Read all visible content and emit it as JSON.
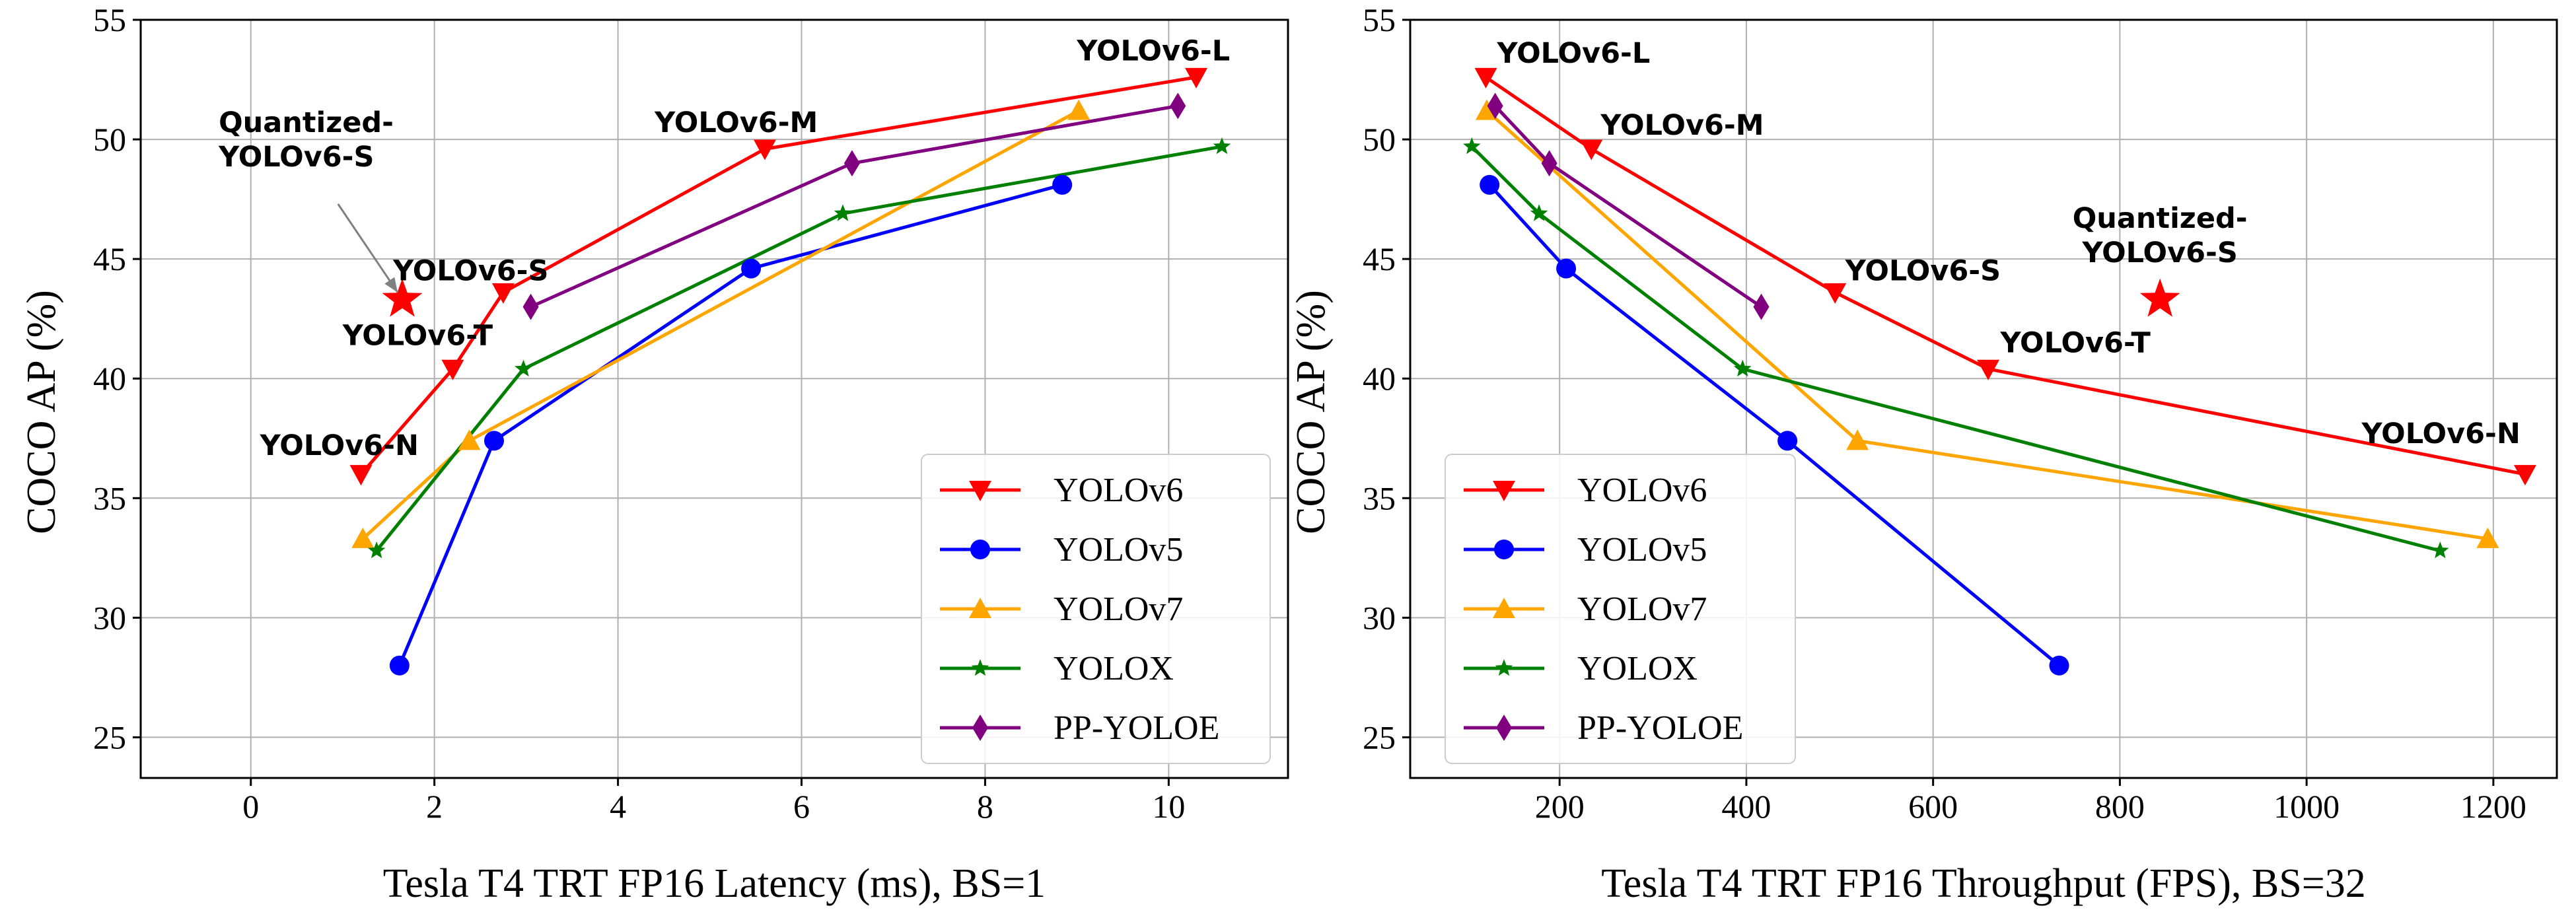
{
  "chart_data": [
    {
      "id": "left",
      "type": "line",
      "xlabel": "Tesla T4 TRT FP16 Latency (ms), BS=1",
      "ylabel": "COCO AP (%)",
      "xlim": [
        -1.2,
        11.3
      ],
      "ylim": [
        23.3,
        55
      ],
      "xticks": [
        0,
        2,
        4,
        6,
        8,
        10
      ],
      "xtick_labels": [
        "0",
        "2",
        "4",
        "6",
        "8",
        "10"
      ],
      "yticks": [
        25,
        30,
        35,
        40,
        45,
        50,
        55
      ],
      "ytick_labels": [
        "25",
        "30",
        "35",
        "40",
        "45",
        "50",
        "55"
      ],
      "grid": true,
      "legend_position": "lower-right",
      "series": [
        {
          "name": "YOLOv6",
          "color": "#ff0000",
          "marker": "triangle-down",
          "x": [
            1.2,
            2.2,
            2.75,
            5.6,
            10.3
          ],
          "y": [
            36.0,
            40.4,
            43.6,
            49.6,
            52.6
          ]
        },
        {
          "name": "YOLOv5",
          "color": "#0000ff",
          "marker": "circle",
          "x": [
            1.62,
            2.65,
            5.45,
            8.84
          ],
          "y": [
            28.0,
            37.4,
            44.6,
            48.1
          ]
        },
        {
          "name": "YOLOv7",
          "color": "#ffa500",
          "marker": "triangle-up",
          "x": [
            1.22,
            2.38,
            9.02
          ],
          "y": [
            33.3,
            37.4,
            51.2
          ]
        },
        {
          "name": "YOLOX",
          "color": "#008000",
          "marker": "star",
          "x": [
            1.37,
            2.97,
            6.45,
            10.58
          ],
          "y": [
            32.8,
            40.4,
            46.9,
            49.7
          ]
        },
        {
          "name": "PP-YOLOE",
          "color": "#800080",
          "marker": "diamond",
          "x": [
            3.05,
            6.55,
            10.1
          ],
          "y": [
            43.0,
            49.0,
            51.4
          ]
        }
      ],
      "special_points": [
        {
          "name": "Quantized-YOLOv6-S",
          "color": "#ff0000",
          "marker": "star-big",
          "x": 1.65,
          "y": 43.3
        }
      ],
      "annotations": [
        {
          "lines": [
            "YOLOv6-N"
          ],
          "x": 0.1,
          "y": 36.8,
          "anchor": "start"
        },
        {
          "lines": [
            "YOLOv6-T"
          ],
          "x": 1.0,
          "y": 41.4,
          "anchor": "start"
        },
        {
          "lines": [
            "YOLOv6-S"
          ],
          "x": 1.55,
          "y": 44.1,
          "anchor": "start"
        },
        {
          "lines": [
            "YOLOv6-M"
          ],
          "x": 4.4,
          "y": 50.3,
          "anchor": "start"
        },
        {
          "lines": [
            "YOLOv6-L"
          ],
          "x": 9.0,
          "y": 53.3,
          "anchor": "start"
        },
        {
          "lines": [
            "Quantized-",
            "YOLOv6-S"
          ],
          "x": -0.35,
          "y": 50.3,
          "anchor": "start",
          "arrow_to": [
            1.6,
            43.6
          ],
          "arrow_from": [
            0.95,
            47.3
          ]
        }
      ]
    },
    {
      "id": "right",
      "type": "line",
      "xlabel": "Tesla T4 TRT FP16 Throughput (FPS), BS=32",
      "ylabel": "COCO AP (%)",
      "xlim": [
        40,
        1268
      ],
      "ylim": [
        23.3,
        55
      ],
      "xticks": [
        200,
        400,
        600,
        800,
        1000,
        1200
      ],
      "xtick_labels": [
        "200",
        "400",
        "600",
        "800",
        "1000",
        "1200"
      ],
      "yticks": [
        25,
        30,
        35,
        40,
        45,
        50,
        55
      ],
      "ytick_labels": [
        "25",
        "30",
        "35",
        "40",
        "45",
        "50",
        "55"
      ],
      "grid": true,
      "legend_position": "lower-left",
      "series": [
        {
          "name": "YOLOv6",
          "color": "#ff0000",
          "marker": "triangle-down",
          "x": [
            121,
            234,
            495,
            659,
            1234
          ],
          "y": [
            52.6,
            49.6,
            43.6,
            40.4,
            36.0
          ]
        },
        {
          "name": "YOLOv5",
          "color": "#0000ff",
          "marker": "circle",
          "x": [
            125,
            207,
            444,
            735
          ],
          "y": [
            48.1,
            44.6,
            37.4,
            28.0
          ]
        },
        {
          "name": "YOLOv7",
          "color": "#ffa500",
          "marker": "triangle-up",
          "x": [
            122,
            519,
            1194
          ],
          "y": [
            51.2,
            37.4,
            33.3
          ]
        },
        {
          "name": "YOLOX",
          "color": "#008000",
          "marker": "star",
          "x": [
            106,
            178,
            396,
            1143
          ],
          "y": [
            49.7,
            46.9,
            40.4,
            32.8
          ]
        },
        {
          "name": "PP-YOLOE",
          "color": "#800080",
          "marker": "diamond",
          "x": [
            131,
            189,
            416
          ],
          "y": [
            51.4,
            49.0,
            43.0
          ]
        }
      ],
      "special_points": [
        {
          "name": "Quantized-YOLOv6-S",
          "color": "#ff0000",
          "marker": "star-big",
          "x": 843,
          "y": 43.3
        }
      ],
      "annotations": [
        {
          "lines": [
            "YOLOv6-L"
          ],
          "x": 133,
          "y": 53.2,
          "anchor": "start"
        },
        {
          "lines": [
            "YOLOv6-M"
          ],
          "x": 244,
          "y": 50.2,
          "anchor": "start"
        },
        {
          "lines": [
            "YOLOv6-S"
          ],
          "x": 506,
          "y": 44.1,
          "anchor": "start"
        },
        {
          "lines": [
            "YOLOv6-T"
          ],
          "x": 672,
          "y": 41.1,
          "anchor": "start"
        },
        {
          "lines": [
            "YOLOv6-N"
          ],
          "x": 1059,
          "y": 37.3,
          "anchor": "start"
        },
        {
          "lines": [
            "Quantized-",
            "YOLOv6-S"
          ],
          "x": 843,
          "y": 46.3,
          "anchor": "middle"
        }
      ]
    }
  ]
}
